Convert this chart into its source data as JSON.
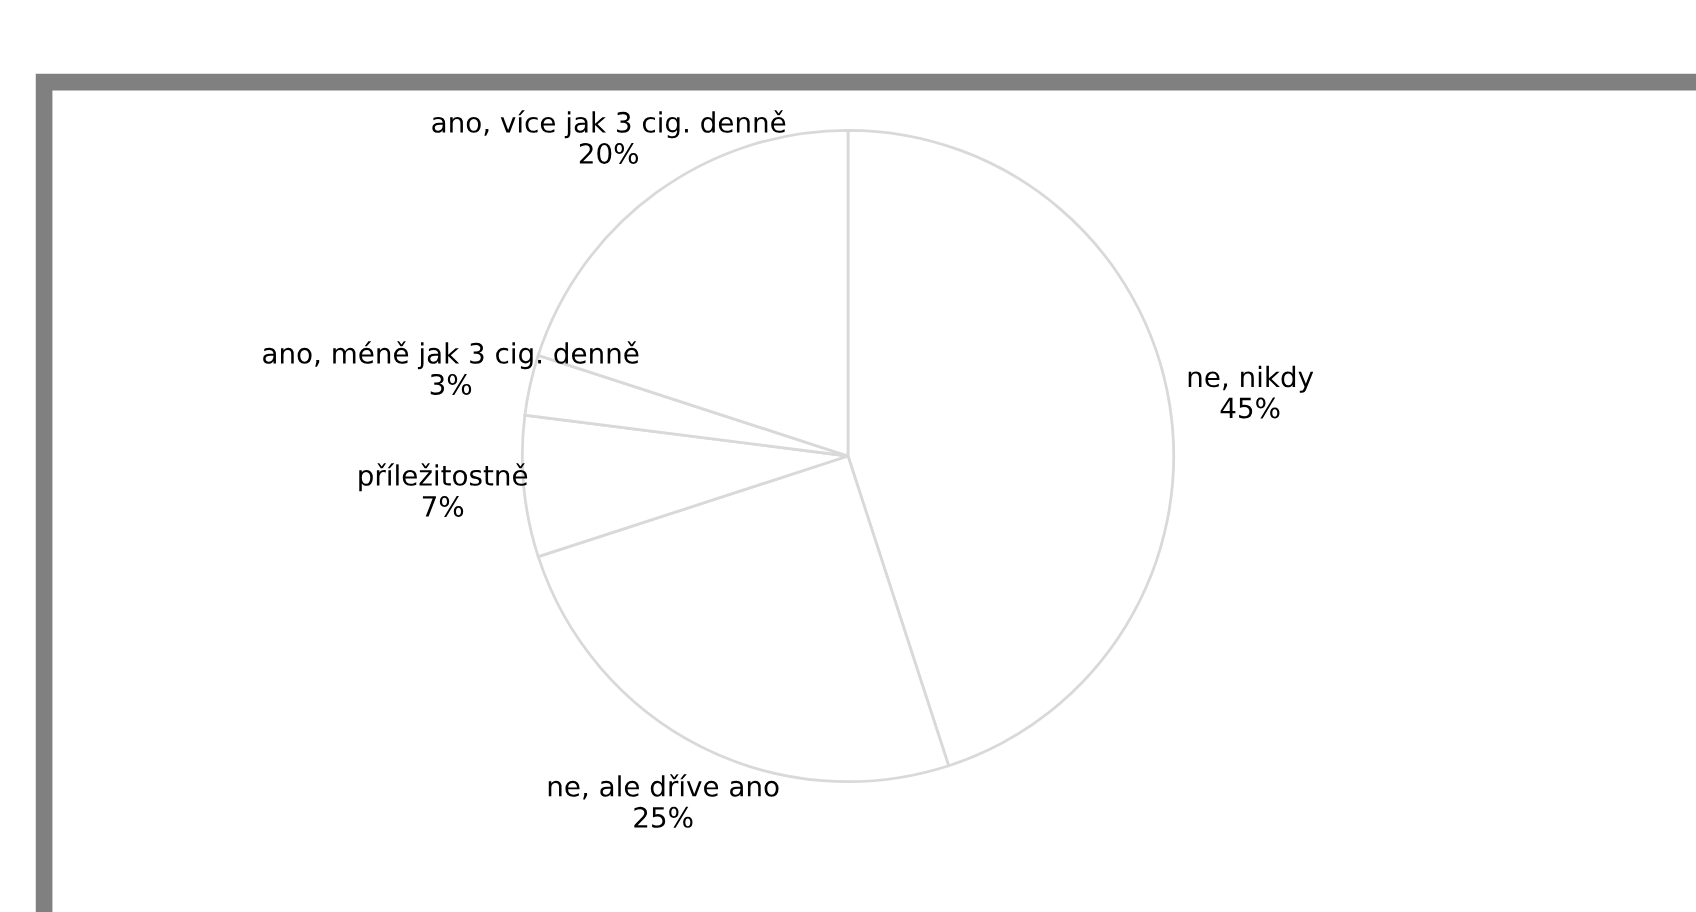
{
  "chart_data": {
    "type": "pie",
    "categories": [
      "ne, nikdy",
      "ne, ale dříve ano",
      "příležitostně",
      "ano, méně jak 3 cig. denně",
      "ano, více jak 3 cig. denně"
    ],
    "values": [
      45,
      25,
      7,
      3,
      20
    ],
    "value_labels": [
      "45%",
      "25%",
      "7%",
      "3%",
      "20%"
    ],
    "colors": [
      "#ffffff",
      "#ffffff",
      "#ffffff",
      "#ffffff",
      "#ffffff"
    ],
    "legend": false
  }
}
